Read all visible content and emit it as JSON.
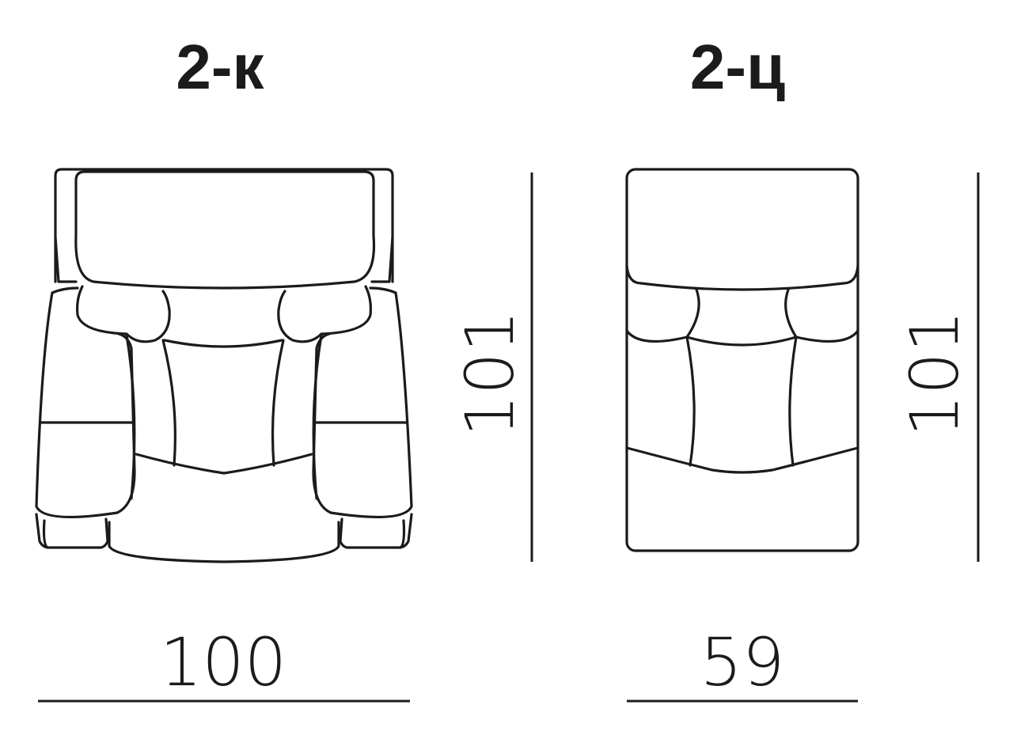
{
  "modules": [
    {
      "name": "2-к",
      "width": "100",
      "depth": "101"
    },
    {
      "name": "2-ц",
      "width": "59",
      "depth": "101"
    }
  ],
  "colors": {
    "line": "#1b1b1b",
    "background": "#ffffff"
  }
}
